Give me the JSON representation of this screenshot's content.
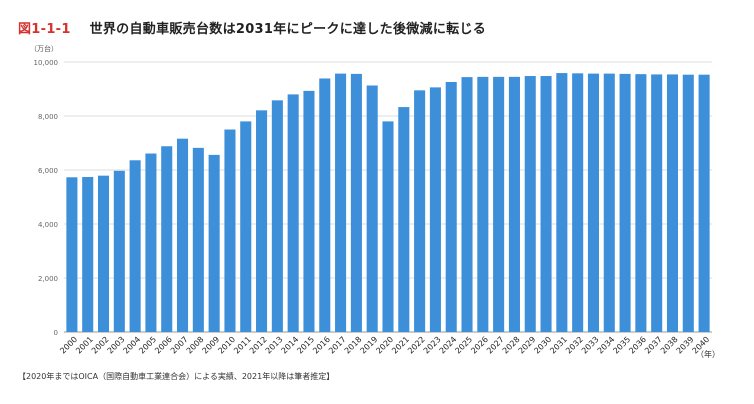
{
  "figure": {
    "number": "図1-1-1",
    "title": "世界の自動車販売台数は2031年にピークに達した後微減に転じる",
    "source_note": "【2020年まではOICA（国際自動車工業連合会）による実績、2021年以降は筆者推定】"
  },
  "chart_data": {
    "type": "bar",
    "title": "世界の自動車販売台数は2031年にピークに達した後微減に転じる",
    "y_unit_label": "（万台）",
    "x_unit_label": "（年）",
    "xlabel": "",
    "ylabel": "",
    "ylim": [
      0,
      10000
    ],
    "y_ticks": [
      0,
      2000,
      4000,
      6000,
      8000,
      10000
    ],
    "y_tick_labels": [
      "0",
      "2,000",
      "4,000",
      "6,000",
      "8,000",
      "10,000"
    ],
    "grid": true,
    "bar_color": "#3d8fd9",
    "categories": [
      "2000",
      "2001",
      "2002",
      "2003",
      "2004",
      "2005",
      "2006",
      "2007",
      "2008",
      "2009",
      "2010",
      "2011",
      "2012",
      "2013",
      "2014",
      "2015",
      "2016",
      "2017",
      "2018",
      "2019",
      "2020",
      "2021",
      "2022",
      "2023",
      "2024",
      "2025",
      "2026",
      "2027",
      "2028",
      "2029",
      "2030",
      "2031",
      "2032",
      "2033",
      "2034",
      "2035",
      "2036",
      "2037",
      "2038",
      "2039",
      "2040"
    ],
    "values": [
      5730,
      5740,
      5790,
      5970,
      6360,
      6610,
      6880,
      7160,
      6820,
      6560,
      7500,
      7800,
      8210,
      8580,
      8800,
      8930,
      9390,
      9570,
      9560,
      9130,
      7800,
      8330,
      8950,
      9060,
      9260,
      9440,
      9450,
      9450,
      9450,
      9480,
      9480,
      9590,
      9580,
      9570,
      9570,
      9560,
      9550,
      9540,
      9540,
      9530,
      9530
    ]
  }
}
